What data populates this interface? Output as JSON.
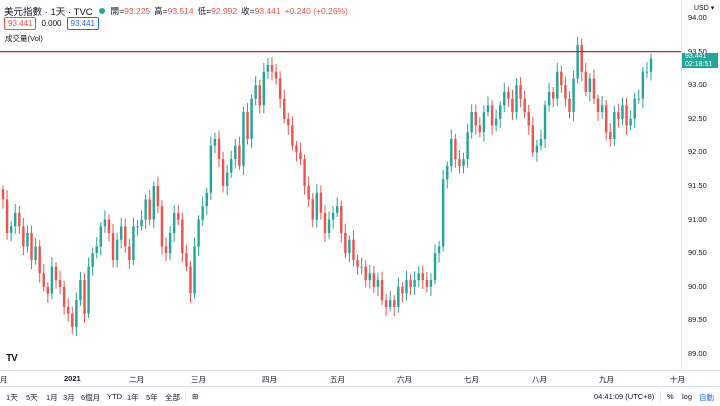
{
  "header": {
    "symbol": "美元指數 · 1天 · TVC",
    "open_label": "開",
    "open": "93.225",
    "high_label": "高",
    "high": "93.514",
    "low_label": "低",
    "low": "92.992",
    "close_label": "收",
    "close": "93.441",
    "change": "+0.240 (+0.26%)",
    "bid": "93.441",
    "spread": "0.000",
    "ask": "93.441"
  },
  "volume_label": "成交量(Vol)",
  "currency": "USD",
  "last_price": "93.441",
  "countdown": "02:18:51",
  "toolbar": {
    "ranges": [
      "1天",
      "5天",
      "1月",
      "3月",
      "6個月",
      "YTD",
      "1年",
      "5年",
      "全部"
    ],
    "time": "04:41:09 (UTC+8)",
    "pct": "%",
    "log": "log",
    "auto": "自動"
  },
  "colors": {
    "up": "#26a69a",
    "down": "#ef5350",
    "price_line": "#b22833",
    "blue": "#2962ff"
  },
  "chart_data": {
    "type": "candlestick",
    "y_ticks": [
      89.0,
      89.5,
      90.0,
      90.5,
      91.0,
      91.5,
      92.0,
      92.5,
      93.0,
      93.5,
      94.0
    ],
    "x_ticks": [
      "月",
      "2021",
      "二月",
      "三月",
      "四月",
      "五月",
      "六月",
      "七月",
      "八月",
      "九月",
      "十月"
    ],
    "horizontal_line": 93.5,
    "closes": [
      91.3,
      90.8,
      90.9,
      91.1,
      90.9,
      90.6,
      90.8,
      90.4,
      90.6,
      90.2,
      90.0,
      89.9,
      90.3,
      90.1,
      90.0,
      89.7,
      89.6,
      89.4,
      89.8,
      90.1,
      89.6,
      90.3,
      90.5,
      90.6,
      90.9,
      91.0,
      90.8,
      90.4,
      90.7,
      90.9,
      90.6,
      90.4,
      90.9,
      90.9,
      91.0,
      91.3,
      91.0,
      91.5,
      91.2,
      90.6,
      90.5,
      90.8,
      91.1,
      91.0,
      90.5,
      90.3,
      89.9,
      90.6,
      91.0,
      91.2,
      91.4,
      92.1,
      92.2,
      91.9,
      91.5,
      91.7,
      91.9,
      92.1,
      91.8,
      92.6,
      92.2,
      92.8,
      93.0,
      92.7,
      93.2,
      93.3,
      93.2,
      93.1,
      92.8,
      92.5,
      92.4,
      92.1,
      92.0,
      91.9,
      91.5,
      91.3,
      91.0,
      91.4,
      91.1,
      90.8,
      91.0,
      91.1,
      91.2,
      90.8,
      90.5,
      90.7,
      90.4,
      90.3,
      90.3,
      90.1,
      90.2,
      90.0,
      90.1,
      89.8,
      89.7,
      89.8,
      89.7,
      90.0,
      89.9,
      90.1,
      90.0,
      90.1,
      90.2,
      90.1,
      90.0,
      90.1,
      90.5,
      90.6,
      91.6,
      91.8,
      92.2,
      91.9,
      91.8,
      91.9,
      92.3,
      92.6,
      92.4,
      92.3,
      92.6,
      92.7,
      92.4,
      92.5,
      92.7,
      92.9,
      92.8,
      92.6,
      93.0,
      92.8,
      92.6,
      92.4,
      92.0,
      92.1,
      92.2,
      92.7,
      92.9,
      92.8,
      93.2,
      93.0,
      92.8,
      92.6,
      93.1,
      93.6,
      93.2,
      92.9,
      93.1,
      92.8,
      92.6,
      92.7,
      92.3,
      92.2,
      92.6,
      92.5,
      92.7,
      92.4,
      92.5,
      92.8,
      92.8,
      93.2,
      93.2,
      93.4
    ]
  }
}
